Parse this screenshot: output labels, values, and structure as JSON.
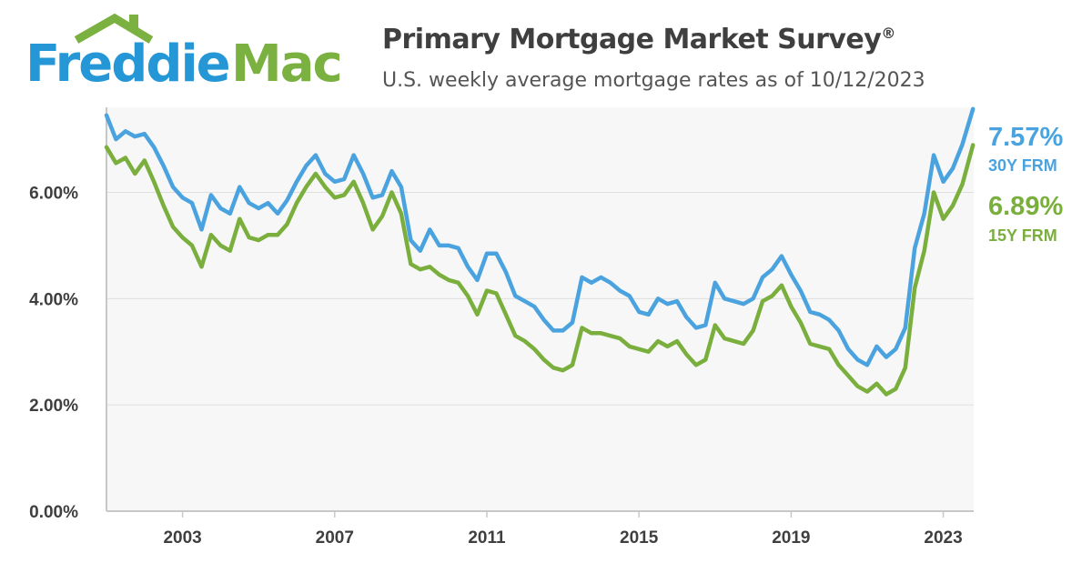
{
  "brand": {
    "word1": "Freddie",
    "word2": "Mac",
    "blue": "#2597d6",
    "green": "#7bb141"
  },
  "chart_data": {
    "type": "line",
    "title": "Primary Mortgage Market Survey",
    "title_mark": "®",
    "subtitle": "U.S. weekly average mortgage rates as of 10/12/2023",
    "xlabel": "",
    "ylabel": "",
    "xlim": [
      2001.0,
      2023.8
    ],
    "ylim": [
      0,
      7.6
    ],
    "x_ticks": [
      2003,
      2007,
      2011,
      2015,
      2019,
      2023
    ],
    "y_ticks": [
      0,
      2,
      4,
      6
    ],
    "y_tick_labels": [
      "0.00%",
      "2.00%",
      "4.00%",
      "6.00%"
    ],
    "grid": true,
    "x": [
      2001.0,
      2001.25,
      2001.5,
      2001.75,
      2002.0,
      2002.25,
      2002.5,
      2002.75,
      2003.0,
      2003.25,
      2003.5,
      2003.75,
      2004.0,
      2004.25,
      2004.5,
      2004.75,
      2005.0,
      2005.25,
      2005.5,
      2005.75,
      2006.0,
      2006.25,
      2006.5,
      2006.75,
      2007.0,
      2007.25,
      2007.5,
      2007.75,
      2008.0,
      2008.25,
      2008.5,
      2008.75,
      2009.0,
      2009.25,
      2009.5,
      2009.75,
      2010.0,
      2010.25,
      2010.5,
      2010.75,
      2011.0,
      2011.25,
      2011.5,
      2011.75,
      2012.0,
      2012.25,
      2012.5,
      2012.75,
      2013.0,
      2013.25,
      2013.5,
      2013.75,
      2014.0,
      2014.25,
      2014.5,
      2014.75,
      2015.0,
      2015.25,
      2015.5,
      2015.75,
      2016.0,
      2016.25,
      2016.5,
      2016.75,
      2017.0,
      2017.25,
      2017.5,
      2017.75,
      2018.0,
      2018.25,
      2018.5,
      2018.75,
      2019.0,
      2019.25,
      2019.5,
      2019.75,
      2020.0,
      2020.25,
      2020.5,
      2020.75,
      2021.0,
      2021.25,
      2021.5,
      2021.75,
      2022.0,
      2022.25,
      2022.5,
      2022.75,
      2023.0,
      2023.25,
      2023.5,
      2023.78
    ],
    "series": [
      {
        "name": "30Y FRM",
        "color": "#4aa3df",
        "end_label": "7.57%",
        "values": [
          7.45,
          7.0,
          7.15,
          7.05,
          7.1,
          6.85,
          6.5,
          6.1,
          5.9,
          5.8,
          5.3,
          5.95,
          5.7,
          5.6,
          6.1,
          5.8,
          5.7,
          5.8,
          5.6,
          5.85,
          6.2,
          6.5,
          6.7,
          6.35,
          6.2,
          6.25,
          6.7,
          6.35,
          5.9,
          5.95,
          6.4,
          6.1,
          5.1,
          4.9,
          5.3,
          5.0,
          5.0,
          4.95,
          4.6,
          4.35,
          4.85,
          4.85,
          4.5,
          4.05,
          3.95,
          3.85,
          3.6,
          3.4,
          3.4,
          3.55,
          4.4,
          4.3,
          4.4,
          4.3,
          4.15,
          4.05,
          3.75,
          3.7,
          4.0,
          3.9,
          3.95,
          3.65,
          3.45,
          3.5,
          4.3,
          4.0,
          3.95,
          3.9,
          4.0,
          4.4,
          4.55,
          4.8,
          4.45,
          4.15,
          3.75,
          3.7,
          3.6,
          3.4,
          3.05,
          2.85,
          2.75,
          3.1,
          2.9,
          3.05,
          3.45,
          4.95,
          5.6,
          6.7,
          6.2,
          6.45,
          6.9,
          7.57
        ]
      },
      {
        "name": "15Y FRM",
        "color": "#7aaf3e",
        "end_label": "6.89%",
        "values": [
          6.85,
          6.55,
          6.65,
          6.35,
          6.6,
          6.2,
          5.75,
          5.35,
          5.15,
          5.0,
          4.6,
          5.2,
          5.0,
          4.9,
          5.5,
          5.15,
          5.1,
          5.2,
          5.2,
          5.4,
          5.8,
          6.1,
          6.35,
          6.1,
          5.9,
          5.95,
          6.2,
          5.8,
          5.3,
          5.55,
          6.0,
          5.6,
          4.65,
          4.55,
          4.6,
          4.45,
          4.35,
          4.3,
          4.05,
          3.7,
          4.15,
          4.1,
          3.7,
          3.3,
          3.2,
          3.05,
          2.85,
          2.7,
          2.65,
          2.75,
          3.45,
          3.35,
          3.35,
          3.3,
          3.25,
          3.1,
          3.05,
          3.0,
          3.2,
          3.1,
          3.2,
          2.95,
          2.75,
          2.85,
          3.5,
          3.25,
          3.2,
          3.15,
          3.4,
          3.95,
          4.05,
          4.25,
          3.85,
          3.55,
          3.15,
          3.1,
          3.05,
          2.75,
          2.55,
          2.35,
          2.25,
          2.4,
          2.2,
          2.3,
          2.7,
          4.2,
          4.9,
          6.0,
          5.5,
          5.75,
          6.15,
          6.89
        ]
      }
    ]
  }
}
